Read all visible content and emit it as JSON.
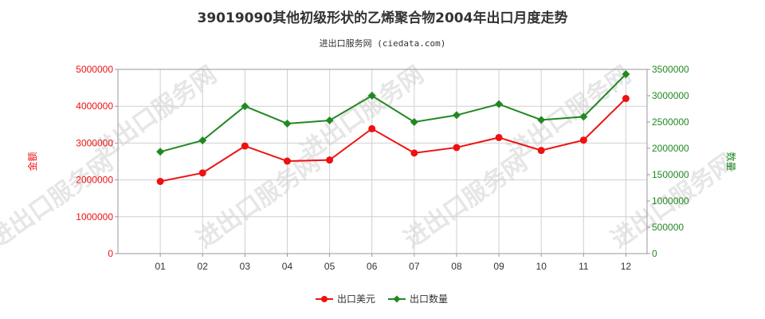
{
  "title": "39019090其他初级形状的乙烯聚合物2004年出口月度走势",
  "subtitle": "进出口服务网 (ciedata.com)",
  "watermark": "进出口服务网",
  "chart_data": {
    "type": "line",
    "categories": [
      "01",
      "02",
      "03",
      "04",
      "05",
      "06",
      "07",
      "08",
      "09",
      "10",
      "11",
      "12"
    ],
    "series": [
      {
        "name": "出口美元",
        "axis": "left",
        "color": "#ee1111",
        "values": [
          1960000,
          2190000,
          2920000,
          2510000,
          2540000,
          3390000,
          2730000,
          2880000,
          3150000,
          2800000,
          3080000,
          4210000
        ]
      },
      {
        "name": "出口数量",
        "axis": "right",
        "color": "#228822",
        "values": [
          1935000,
          2150000,
          2800000,
          2470000,
          2530000,
          3000000,
          2500000,
          2630000,
          2840000,
          2540000,
          2600000,
          3410000
        ]
      }
    ],
    "ylabel_left": "金额",
    "ylabel_right": "数量",
    "ylim_left": [
      0,
      5000000
    ],
    "yticks_left": [
      0,
      1000000,
      2000000,
      3000000,
      4000000,
      5000000
    ],
    "ylim_right": [
      0,
      3500000
    ],
    "yticks_right": [
      0,
      500000,
      1000000,
      1500000,
      2000000,
      2500000,
      3000000,
      3500000
    ],
    "left_axis_color": "#ee1111",
    "right_axis_color": "#228822",
    "grid": true,
    "legend_position": "bottom"
  }
}
